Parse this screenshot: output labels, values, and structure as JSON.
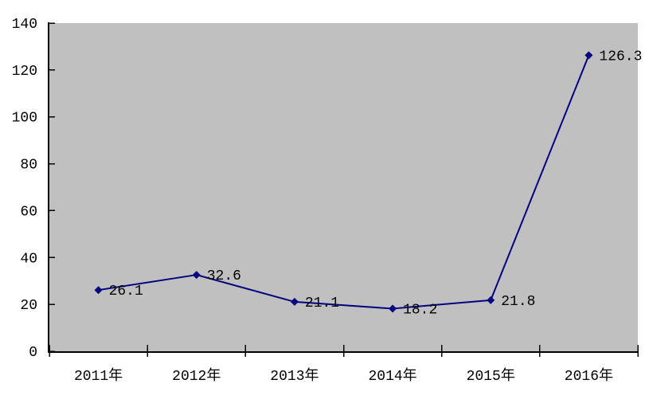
{
  "chart_data": {
    "type": "line",
    "categories": [
      "2011年",
      "2012年",
      "2013年",
      "2014年",
      "2015年",
      "2016年"
    ],
    "series": [
      {
        "name": "",
        "values": [
          26.1,
          32.6,
          21.1,
          18.2,
          21.8,
          126.3
        ]
      }
    ],
    "data_labels": [
      "26.1",
      "32.6",
      "21.1",
      "18.2",
      "21.8",
      "126.3"
    ],
    "title": "",
    "xlabel": "",
    "ylabel": "",
    "ylim": [
      0,
      140
    ],
    "y_ticks": [
      0,
      20,
      40,
      60,
      80,
      100,
      120,
      140
    ],
    "grid": false,
    "legend": false,
    "marker": "diamond",
    "colors": {
      "line": "#000080",
      "marker": "#000080",
      "plot_background": "#C0C0C0",
      "page_background": "#FFFFFF",
      "axis": "#000000",
      "label_text": "#000000"
    }
  }
}
